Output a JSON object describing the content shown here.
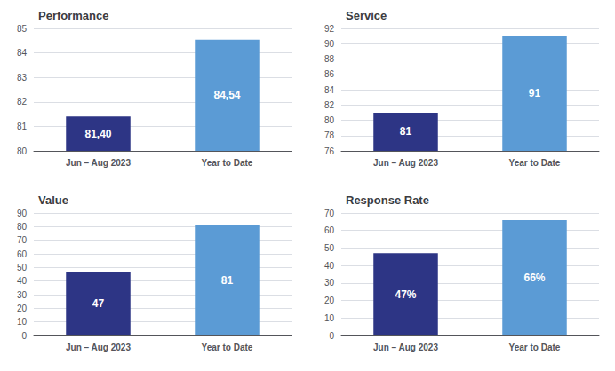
{
  "chart_data": [
    {
      "type": "bar",
      "title": "Performance",
      "categories": [
        "Jun – Aug 2023",
        "Year to Date"
      ],
      "values": [
        81.4,
        84.54
      ],
      "value_labels": [
        "81,40",
        "84,54"
      ],
      "colors": [
        "#2d3585",
        "#5b9bd5"
      ],
      "ylim": [
        80,
        85
      ],
      "yticks": [
        80,
        81,
        82,
        83,
        84,
        85
      ],
      "grid": true,
      "data_labels": true
    },
    {
      "type": "bar",
      "title": "Service",
      "categories": [
        "Jun – Aug 2023",
        "Year to Date"
      ],
      "values": [
        81,
        91
      ],
      "colors": [
        "#2d3585",
        "#5b9bd5"
      ],
      "ylim": [
        76,
        92
      ],
      "yticks": [
        76,
        78,
        80,
        82,
        84,
        86,
        88,
        90,
        92
      ],
      "grid": true,
      "data_labels": true
    },
    {
      "type": "bar",
      "title": "Value",
      "categories": [
        "Jun – Aug 2023",
        "Year to Date"
      ],
      "values": [
        47,
        81
      ],
      "colors": [
        "#2d3585",
        "#5b9bd5"
      ],
      "ylim": [
        0,
        90
      ],
      "yticks": [
        0,
        10,
        20,
        30,
        40,
        50,
        60,
        70,
        80,
        90
      ],
      "grid": true,
      "data_labels": true
    },
    {
      "type": "bar",
      "title": "Response Rate",
      "categories": [
        "Jun – Aug 2023",
        "Year to Date"
      ],
      "values": [
        47,
        66
      ],
      "value_labels": [
        "47%",
        "66%"
      ],
      "colors": [
        "#2d3585",
        "#5b9bd5"
      ],
      "ylim": [
        0,
        70
      ],
      "yticks": [
        0,
        10,
        20,
        30,
        40,
        50,
        60,
        70
      ],
      "grid": true,
      "data_labels": true
    }
  ]
}
